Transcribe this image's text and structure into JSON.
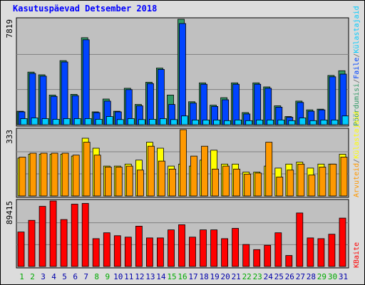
{
  "chart_data": {
    "type": "bar",
    "title": "Kasutuspäevad Detsember 2018",
    "categories": [
      "1",
      "2",
      "3",
      "4",
      "5",
      "6",
      "7",
      "8",
      "9",
      "10",
      "11",
      "12",
      "13",
      "14",
      "15",
      "16",
      "17",
      "18",
      "19",
      "20",
      "21",
      "22",
      "23",
      "24",
      "25",
      "26",
      "27",
      "28",
      "29",
      "30",
      "31"
    ],
    "weekend_days": [
      "1",
      "2",
      "8",
      "9",
      "15",
      "16",
      "22",
      "23",
      "29",
      "30"
    ],
    "panels": [
      {
        "id": "hits",
        "ymax_label": "7819",
        "ymax": 7819,
        "series": [
          {
            "name": "Pöördumisi",
            "color": "#339966",
            "values": [
              1000,
              3900,
              3700,
              2200,
              4750,
              2250,
              6450,
              950,
              1900,
              1000,
              2700,
              1500,
              3150,
              4200,
              2200,
              7819,
              1700,
              3100,
              1450,
              2000,
              3100,
              900,
              3100,
              2800,
              1400,
              600,
              1750,
              1100,
              1150,
              3650,
              4000
            ]
          },
          {
            "name": "Faile",
            "color": "#0044ff",
            "values": [
              950,
              3800,
              3600,
              2100,
              4650,
              2150,
              6300,
              900,
              1750,
              950,
              2600,
              1400,
              3050,
              4100,
              1500,
              7500,
              1600,
              3000,
              1350,
              1850,
              3000,
              800,
              3000,
              2700,
              1300,
              550,
              1650,
              1000,
              1100,
              3550,
              3750
            ]
          },
          {
            "name": "Külastajaid",
            "color": "#00ccff",
            "values": [
              450,
              500,
              450,
              400,
              450,
              450,
              450,
              400,
              600,
              380,
              450,
              380,
              400,
              450,
              380,
              650,
              350,
              350,
              350,
              300,
              350,
              300,
              350,
              350,
              350,
              300,
              500,
              300,
              350,
              350,
              650
            ]
          }
        ]
      },
      {
        "id": "visits",
        "ymax_label": "333",
        "ymax": 333,
        "series": [
          {
            "name": "Külastajaid",
            "color": "#ffff00",
            "values": [
              190,
              210,
              210,
              210,
              210,
              200,
              290,
              240,
              150,
              150,
              160,
              180,
              270,
              240,
              150,
              160,
              150,
              180,
              230,
              160,
              160,
              120,
              120,
              150,
              140,
              160,
              170,
              140,
              160,
              160,
              210
            ]
          },
          {
            "name": "Arvuteid",
            "color": "#ff9900",
            "values": [
              195,
              215,
              215,
              215,
              215,
              205,
              270,
              205,
              145,
              145,
              150,
              130,
              250,
              175,
              135,
              333,
              200,
              250,
              135,
              150,
              135,
              110,
              115,
              270,
              95,
              130,
              160,
              105,
              145,
              160,
              195
            ]
          }
        ]
      },
      {
        "id": "bytes",
        "ymax_label": "89415",
        "ymax": 89415,
        "series": [
          {
            "name": "KBaite",
            "color": "#ff0000",
            "values": [
              47000,
              63000,
              82000,
              89415,
              64000,
              85000,
              86000,
              38000,
              46000,
              42000,
              40000,
              55000,
              39000,
              39000,
              50000,
              57000,
              40000,
              50000,
              50000,
              38000,
              52000,
              30000,
              23000,
              29000,
              46000,
              15000,
              73000,
              39000,
              38000,
              44000,
              66000
            ]
          }
        ]
      }
    ],
    "axis_labels_right": {
      "top": [
        {
          "text": "Pöördumisi",
          "color": "#339966"
        },
        {
          "text": "/",
          "color": "#666666"
        },
        {
          "text": "Faile",
          "color": "#0044ff"
        },
        {
          "text": "/",
          "color": "#666666"
        },
        {
          "text": "Külastajaid",
          "color": "#00ccff"
        }
      ],
      "middle": [
        {
          "text": "Arvuteid",
          "color": "#ff9900"
        },
        {
          "text": "/",
          "color": "#666666"
        },
        {
          "text": "Külastajaid",
          "color": "#ffff00"
        }
      ],
      "bottom": [
        {
          "text": "KBaite",
          "color": "#ff0000"
        }
      ]
    },
    "colors": {
      "title": "#0000ff",
      "panel_bg": "#c0c0c0",
      "frame_bg": "#dcdcdc",
      "weekday_label": "#0000aa",
      "weekend_label": "#00aa00",
      "gridline": "#808080"
    },
    "grid": true
  }
}
